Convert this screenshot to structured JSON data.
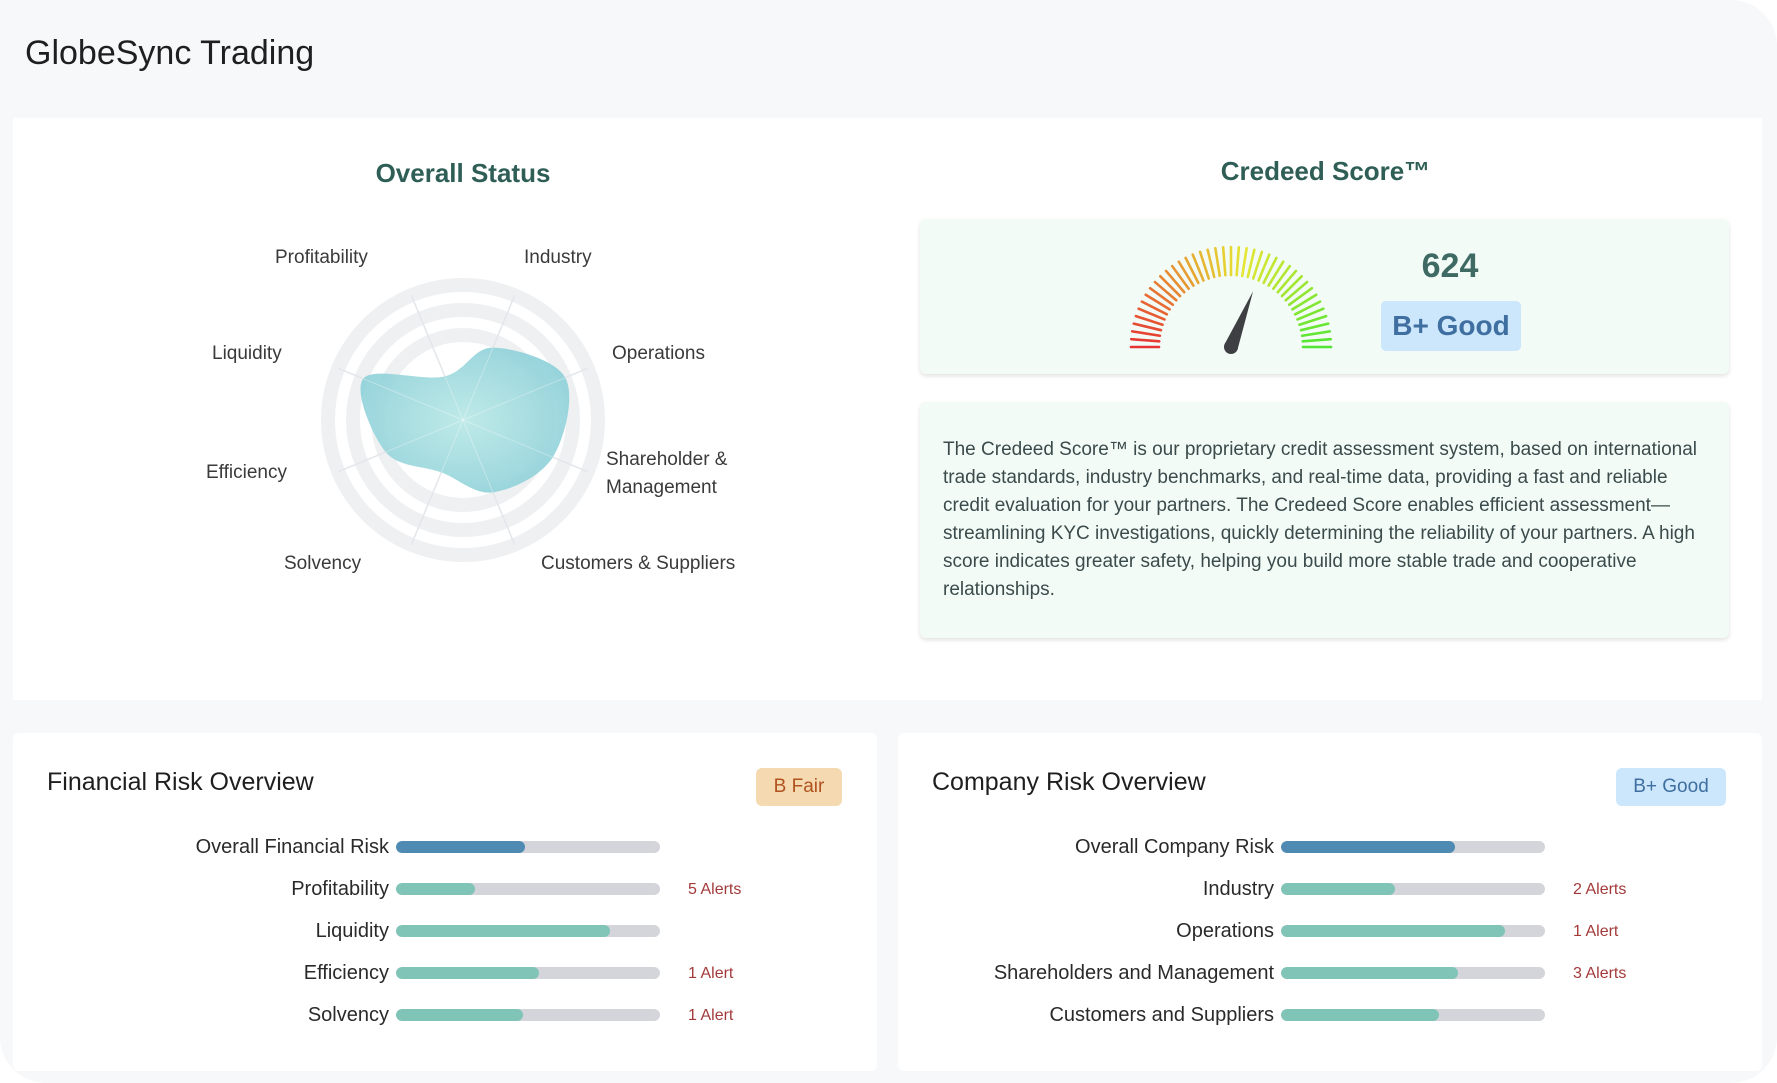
{
  "company": {
    "name": "GlobeSync Trading"
  },
  "overall_status": {
    "title": "Overall Status",
    "axes": [
      {
        "label": "Industry",
        "value": 0.58
      },
      {
        "label": "Operations",
        "value": 0.82
      },
      {
        "label": "Shareholder & Management",
        "value": 0.72
      },
      {
        "label": "Customers & Suppliers",
        "value": 0.58
      },
      {
        "label": "Solvency",
        "value": 0.42
      },
      {
        "label": "Efficiency",
        "value": 0.62
      },
      {
        "label": "Liquidity",
        "value": 0.8
      },
      {
        "label": "Profitability",
        "value": 0.35
      }
    ],
    "fill_color": "#8ccfd8"
  },
  "credeed": {
    "title": "Credeed Score™",
    "score": "624",
    "grade": "B+ Good",
    "gauge_level": 0.62,
    "description": "The Credeed Score™ is our proprietary credit assessment system, based on international trade standards, industry benchmarks, and real-time data, providing a fast and reliable credit evaluation for your partners. The Credeed Score enables efficient assessment—streamlining KYC investigations, quickly determining the reliability of your partners. A high score indicates greater safety, helping you build more stable trade and cooperative relationships."
  },
  "financial_risk": {
    "title": "Financial Risk Overview",
    "grade": "B Fair",
    "grade_bg": "#f5d9b0",
    "grade_color": "#b0521e",
    "rows": [
      {
        "label": "Overall Financial Risk",
        "level": 0.49,
        "alert": "",
        "color": "#4e8ab2"
      },
      {
        "label": "Profitability",
        "level": 0.3,
        "alert": "5 Alerts",
        "color": "#7fc4b7"
      },
      {
        "label": "Liquidity",
        "level": 0.81,
        "alert": "",
        "color": "#7fc4b7"
      },
      {
        "label": "Efficiency",
        "level": 0.54,
        "alert": "1 Alert",
        "color": "#7fc4b7"
      },
      {
        "label": "Solvency",
        "level": 0.48,
        "alert": "1 Alert",
        "color": "#7fc4b7"
      }
    ]
  },
  "company_risk": {
    "title": "Company Risk Overview",
    "grade": "B+ Good",
    "grade_bg": "#cce6fb",
    "grade_color": "#3f6fa0",
    "rows": [
      {
        "label": "Overall Company Risk",
        "level": 0.66,
        "alert": "",
        "color": "#4e8ab2"
      },
      {
        "label": "Industry",
        "level": 0.43,
        "alert": "2 Alerts",
        "color": "#7fc4b7"
      },
      {
        "label": "Operations",
        "level": 0.85,
        "alert": "1 Alert",
        "color": "#7fc4b7"
      },
      {
        "label": "Shareholders and Management",
        "level": 0.67,
        "alert": "3 Alerts",
        "color": "#7fc4b7"
      },
      {
        "label": "Customers and Suppliers",
        "level": 0.6,
        "alert": "",
        "color": "#7fc4b7"
      }
    ]
  }
}
